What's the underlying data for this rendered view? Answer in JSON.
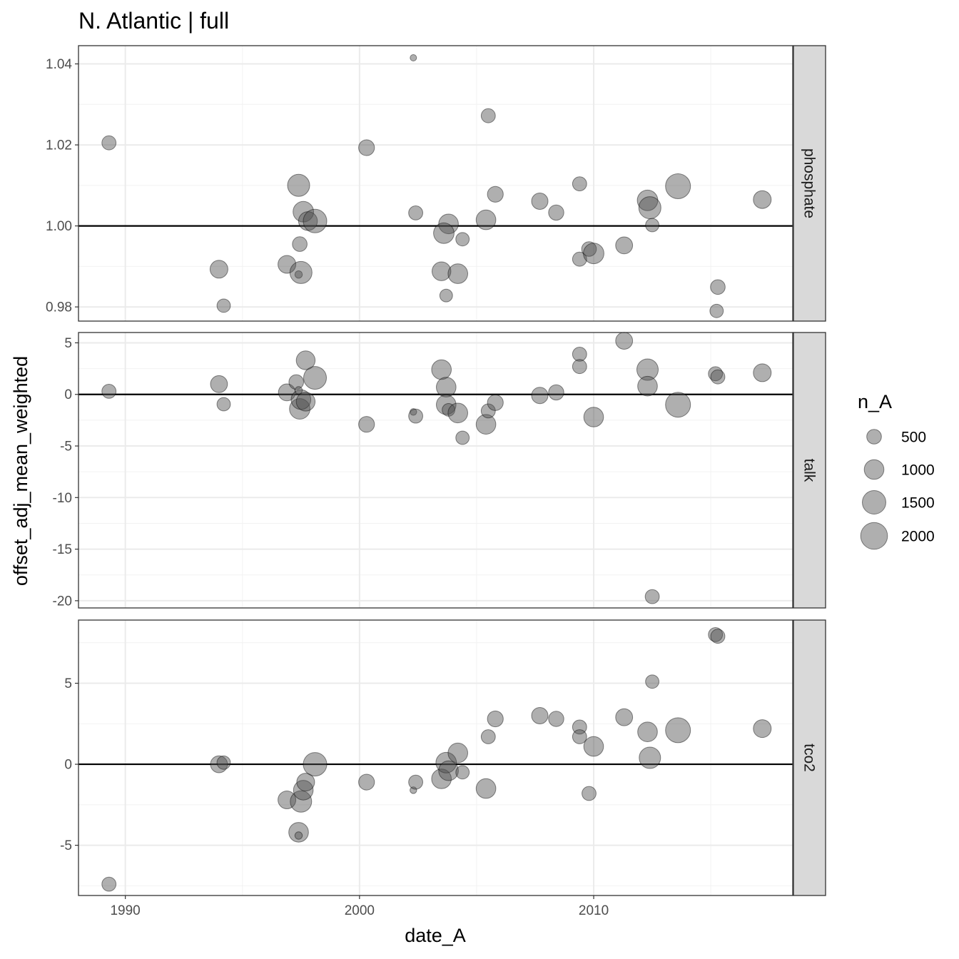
{
  "chart_data": {
    "type": "scatter",
    "title": "N. Atlantic | full",
    "xlabel": "date_A",
    "ylabel": "offset_adj_mean_weighted",
    "x_ticks": [
      1990,
      2000,
      2010
    ],
    "xlim": [
      1988.0,
      2018.5
    ],
    "grid": true,
    "reference_line": {
      "panel_values": {
        "phosphate": 1.0,
        "talk": 0,
        "tco2": 0
      }
    },
    "point_color": "#4d4d4d",
    "panels": [
      {
        "name": "phosphate",
        "ylim": [
          0.9765,
          1.0445
        ],
        "y_ticks": [
          {
            "v": 0.98,
            "label": "0.98"
          },
          {
            "v": 1.0,
            "label": "1.00"
          },
          {
            "v": 1.02,
            "label": "1.02"
          },
          {
            "v": 1.04,
            "label": "1.04"
          }
        ],
        "points": [
          {
            "x": 1989.3,
            "y": 1.0205,
            "n": 450
          },
          {
            "x": 1994.0,
            "y": 0.9893,
            "n": 800
          },
          {
            "x": 1994.2,
            "y": 0.9803,
            "n": 400
          },
          {
            "x": 1996.9,
            "y": 0.9905,
            "n": 800
          },
          {
            "x": 1997.4,
            "y": 1.01,
            "n": 1300
          },
          {
            "x": 1997.4,
            "y": 0.988,
            "n": 80
          },
          {
            "x": 1997.45,
            "y": 0.9955,
            "n": 500
          },
          {
            "x": 1997.5,
            "y": 0.9885,
            "n": 1300
          },
          {
            "x": 1997.6,
            "y": 1.0035,
            "n": 1100
          },
          {
            "x": 1997.8,
            "y": 1.0012,
            "n": 900
          },
          {
            "x": 1998.1,
            "y": 1.0012,
            "n": 1500
          },
          {
            "x": 2000.3,
            "y": 1.0193,
            "n": 600
          },
          {
            "x": 2002.3,
            "y": 1.0415,
            "n": 50
          },
          {
            "x": 2002.4,
            "y": 1.0032,
            "n": 450
          },
          {
            "x": 2003.5,
            "y": 0.9888,
            "n": 900
          },
          {
            "x": 2003.7,
            "y": 0.9828,
            "n": 350
          },
          {
            "x": 2003.8,
            "y": 1.0005,
            "n": 1000
          },
          {
            "x": 2003.6,
            "y": 0.9982,
            "n": 1100
          },
          {
            "x": 2004.2,
            "y": 0.9882,
            "n": 1000
          },
          {
            "x": 2004.4,
            "y": 0.9967,
            "n": 400
          },
          {
            "x": 2005.4,
            "y": 1.0015,
            "n": 1000
          },
          {
            "x": 2005.5,
            "y": 1.0272,
            "n": 450
          },
          {
            "x": 2005.8,
            "y": 1.0078,
            "n": 600
          },
          {
            "x": 2007.7,
            "y": 1.0061,
            "n": 650
          },
          {
            "x": 2008.4,
            "y": 1.0033,
            "n": 550
          },
          {
            "x": 2009.4,
            "y": 1.0104,
            "n": 450
          },
          {
            "x": 2009.4,
            "y": 0.9918,
            "n": 450
          },
          {
            "x": 2009.8,
            "y": 0.9943,
            "n": 500
          },
          {
            "x": 2010.0,
            "y": 0.9932,
            "n": 1100
          },
          {
            "x": 2011.3,
            "y": 0.9952,
            "n": 700
          },
          {
            "x": 2012.3,
            "y": 1.0063,
            "n": 1100
          },
          {
            "x": 2012.4,
            "y": 1.0045,
            "n": 1300
          },
          {
            "x": 2012.5,
            "y": 1.0002,
            "n": 400
          },
          {
            "x": 2013.6,
            "y": 1.0098,
            "n": 1700
          },
          {
            "x": 2015.3,
            "y": 0.9849,
            "n": 500
          },
          {
            "x": 2015.25,
            "y": 0.979,
            "n": 400
          },
          {
            "x": 2017.2,
            "y": 1.0065,
            "n": 800
          }
        ]
      },
      {
        "name": "talk",
        "ylim": [
          -20.7,
          6.0
        ],
        "y_ticks": [
          {
            "v": -20,
            "label": "-20"
          },
          {
            "v": -15,
            "label": "-15"
          },
          {
            "v": -10,
            "label": "-10"
          },
          {
            "v": -5,
            "label": "-5"
          },
          {
            "v": 0,
            "label": "0"
          },
          {
            "v": 5,
            "label": "5"
          }
        ],
        "points": [
          {
            "x": 1989.3,
            "y": 0.3,
            "n": 450
          },
          {
            "x": 1994.0,
            "y": 1.0,
            "n": 700
          },
          {
            "x": 1994.2,
            "y": -0.95,
            "n": 400
          },
          {
            "x": 1996.9,
            "y": 0.2,
            "n": 700
          },
          {
            "x": 1997.3,
            "y": 1.2,
            "n": 500
          },
          {
            "x": 1997.45,
            "y": -1.4,
            "n": 1100
          },
          {
            "x": 1997.5,
            "y": -0.5,
            "n": 1000
          },
          {
            "x": 1997.7,
            "y": -0.7,
            "n": 900
          },
          {
            "x": 1997.7,
            "y": 3.3,
            "n": 900
          },
          {
            "x": 1998.1,
            "y": 1.6,
            "n": 1400
          },
          {
            "x": 1997.4,
            "y": 0.4,
            "n": 80
          },
          {
            "x": 2000.3,
            "y": -2.9,
            "n": 600
          },
          {
            "x": 2002.3,
            "y": -1.7,
            "n": 60
          },
          {
            "x": 2002.4,
            "y": -2.1,
            "n": 450
          },
          {
            "x": 2003.5,
            "y": 2.4,
            "n": 1000
          },
          {
            "x": 2003.7,
            "y": 0.7,
            "n": 1000
          },
          {
            "x": 2003.7,
            "y": -1.0,
            "n": 1000
          },
          {
            "x": 2003.8,
            "y": -1.5,
            "n": 350
          },
          {
            "x": 2004.2,
            "y": -1.8,
            "n": 1000
          },
          {
            "x": 2004.4,
            "y": -4.2,
            "n": 400
          },
          {
            "x": 2005.4,
            "y": -2.9,
            "n": 1000
          },
          {
            "x": 2005.5,
            "y": -1.6,
            "n": 450
          },
          {
            "x": 2005.8,
            "y": -0.8,
            "n": 600
          },
          {
            "x": 2007.7,
            "y": -0.1,
            "n": 650
          },
          {
            "x": 2008.4,
            "y": 0.2,
            "n": 550
          },
          {
            "x": 2009.4,
            "y": 3.9,
            "n": 450
          },
          {
            "x": 2009.4,
            "y": 2.7,
            "n": 450
          },
          {
            "x": 2010.0,
            "y": -2.2,
            "n": 1000
          },
          {
            "x": 2011.3,
            "y": 5.2,
            "n": 700
          },
          {
            "x": 2012.3,
            "y": 2.4,
            "n": 1200
          },
          {
            "x": 2012.3,
            "y": 0.8,
            "n": 1000
          },
          {
            "x": 2012.5,
            "y": -19.6,
            "n": 450
          },
          {
            "x": 2013.6,
            "y": -1.0,
            "n": 1700
          },
          {
            "x": 2015.2,
            "y": 2.0,
            "n": 450
          },
          {
            "x": 2015.3,
            "y": 1.7,
            "n": 450
          },
          {
            "x": 2017.2,
            "y": 2.1,
            "n": 800
          }
        ]
      },
      {
        "name": "tco2",
        "ylim": [
          -8.1,
          8.9
        ],
        "y_ticks": [
          {
            "v": -5,
            "label": "-5"
          },
          {
            "v": 0,
            "label": "0"
          },
          {
            "v": 5,
            "label": "5"
          }
        ],
        "points": [
          {
            "x": 1989.3,
            "y": -7.4,
            "n": 450
          },
          {
            "x": 1994.0,
            "y": 0.0,
            "n": 700
          },
          {
            "x": 1994.2,
            "y": 0.1,
            "n": 400
          },
          {
            "x": 1996.9,
            "y": -2.2,
            "n": 800
          },
          {
            "x": 1997.4,
            "y": -4.2,
            "n": 1000
          },
          {
            "x": 1997.4,
            "y": -4.4,
            "n": 80
          },
          {
            "x": 1997.5,
            "y": -2.3,
            "n": 1200
          },
          {
            "x": 1997.6,
            "y": -1.6,
            "n": 1000
          },
          {
            "x": 1997.7,
            "y": -1.1,
            "n": 800
          },
          {
            "x": 1998.1,
            "y": 0.0,
            "n": 1500
          },
          {
            "x": 2000.3,
            "y": -1.1,
            "n": 600
          },
          {
            "x": 2002.3,
            "y": -1.6,
            "n": 60
          },
          {
            "x": 2002.4,
            "y": -1.1,
            "n": 450
          },
          {
            "x": 2003.5,
            "y": -0.9,
            "n": 1000
          },
          {
            "x": 2003.7,
            "y": 0.1,
            "n": 1100
          },
          {
            "x": 2003.8,
            "y": -0.4,
            "n": 1000
          },
          {
            "x": 2004.2,
            "y": 0.7,
            "n": 1000
          },
          {
            "x": 2004.4,
            "y": -0.5,
            "n": 400
          },
          {
            "x": 2005.4,
            "y": -1.5,
            "n": 1000
          },
          {
            "x": 2005.5,
            "y": 1.7,
            "n": 450
          },
          {
            "x": 2005.8,
            "y": 2.8,
            "n": 600
          },
          {
            "x": 2007.7,
            "y": 3.0,
            "n": 650
          },
          {
            "x": 2008.4,
            "y": 2.8,
            "n": 550
          },
          {
            "x": 2009.4,
            "y": 2.3,
            "n": 450
          },
          {
            "x": 2009.4,
            "y": 1.7,
            "n": 450
          },
          {
            "x": 2009.8,
            "y": -1.8,
            "n": 450
          },
          {
            "x": 2010.0,
            "y": 1.1,
            "n": 1000
          },
          {
            "x": 2011.3,
            "y": 2.9,
            "n": 700
          },
          {
            "x": 2012.3,
            "y": 2.0,
            "n": 1000
          },
          {
            "x": 2012.4,
            "y": 0.4,
            "n": 1200
          },
          {
            "x": 2012.5,
            "y": 5.1,
            "n": 400
          },
          {
            "x": 2013.6,
            "y": 2.1,
            "n": 1700
          },
          {
            "x": 2015.2,
            "y": 8.0,
            "n": 450
          },
          {
            "x": 2015.3,
            "y": 7.9,
            "n": 450
          },
          {
            "x": 2017.2,
            "y": 2.2,
            "n": 800
          }
        ]
      }
    ],
    "legend": {
      "title": "n_A",
      "position": "right",
      "entries": [
        {
          "label": "500",
          "n": 500
        },
        {
          "label": "1000",
          "n": 1000
        },
        {
          "label": "1500",
          "n": 1500
        },
        {
          "label": "2000",
          "n": 2000
        }
      ]
    }
  }
}
